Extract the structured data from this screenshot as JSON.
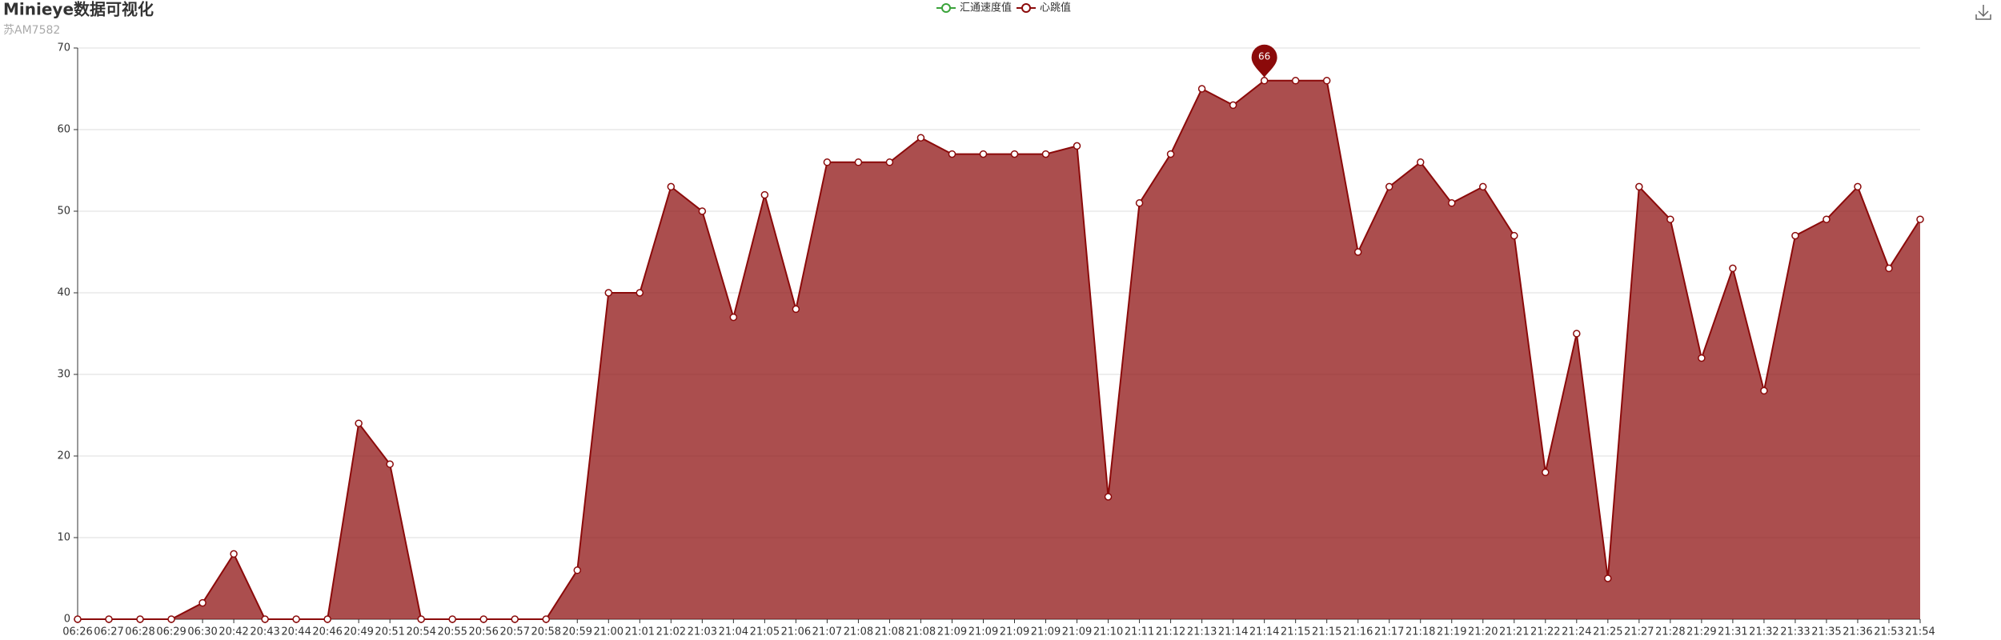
{
  "chart_data": {
    "type": "area",
    "title": "Minieye数据可视化",
    "subtitle": "苏AM7582",
    "categories": [
      "06:26",
      "06:27",
      "06:28",
      "06:29",
      "06:30",
      "20:42",
      "20:43",
      "20:44",
      "20:46",
      "20:49",
      "20:51",
      "20:54",
      "20:55",
      "20:56",
      "20:57",
      "20:58",
      "20:59",
      "21:00",
      "21:01",
      "21:02",
      "21:03",
      "21:04",
      "21:05",
      "21:06",
      "21:07",
      "21:08",
      "21:08",
      "21:08",
      "21:09",
      "21:09",
      "21:09",
      "21:09",
      "21:09",
      "21:10",
      "21:11",
      "21:12",
      "21:13",
      "21:14",
      "21:14",
      "21:15",
      "21:15",
      "21:16",
      "21:17",
      "21:18",
      "21:19",
      "21:20",
      "21:21",
      "21:22",
      "21:24",
      "21:25",
      "21:27",
      "21:28",
      "21:29",
      "21:31",
      "21:32",
      "21:33",
      "21:35",
      "21:36",
      "21:53",
      "21:54"
    ],
    "series": [
      {
        "name": "汇通速度值",
        "color": "#3aa33a",
        "values": [
          null,
          null,
          null,
          null,
          null,
          null,
          null,
          null,
          null,
          null,
          null,
          null,
          null,
          null,
          null,
          null,
          null,
          null,
          null,
          null,
          null,
          null,
          null,
          null,
          null,
          null,
          null,
          null,
          null,
          null,
          null,
          null,
          null,
          null,
          null,
          null,
          null,
          null,
          null,
          null,
          null,
          null,
          null,
          null,
          null,
          null,
          null,
          null,
          null,
          null,
          null,
          null,
          null,
          null,
          null,
          null,
          null,
          null,
          null,
          null
        ]
      },
      {
        "name": "心跳值",
        "color": "#8b0a0a",
        "values": [
          0,
          0,
          0,
          0,
          2,
          8,
          0,
          0,
          0,
          24,
          19,
          0,
          0,
          0,
          0,
          0,
          6,
          40,
          40,
          53,
          50,
          37,
          52,
          38,
          56,
          56,
          56,
          59,
          57,
          57,
          57,
          57,
          58,
          15,
          51,
          57,
          65,
          63,
          66,
          66,
          66,
          45,
          53,
          56,
          51,
          53,
          47,
          18,
          35,
          5,
          53,
          49,
          32,
          43,
          28,
          47,
          49,
          53,
          43,
          49
        ]
      }
    ],
    "ylim": [
      0,
      70
    ],
    "yticks": [
      0,
      10,
      20,
      30,
      40,
      50,
      60,
      70
    ],
    "grid": true
  }
}
